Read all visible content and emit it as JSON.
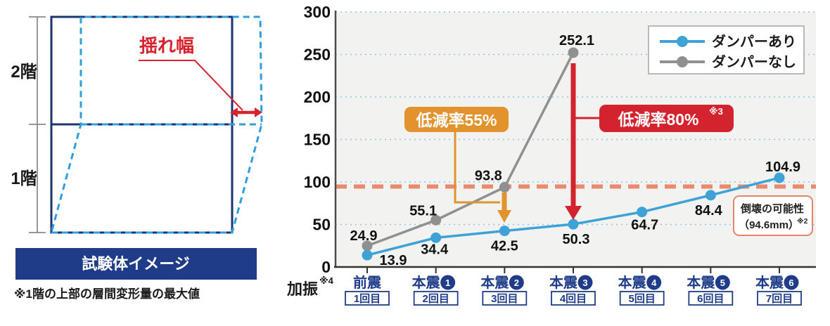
{
  "diagram": {
    "floor2_label": "2階",
    "floor1_label": "1階",
    "sway_label": "揺れ幅",
    "caption": "試験体イメージ",
    "note": "※1階の上部の層間変形量の最大値"
  },
  "chart": {
    "x_prefix": "加振",
    "x_prefix_sup": "※4",
    "annotation_55": {
      "text": "低減率55%",
      "color": "#e2932d"
    },
    "annotation_80": {
      "text": "低減率80%",
      "sup": "※3",
      "color": "#d2232e"
    },
    "threshold_box": {
      "line1": "倒壊の可能性",
      "line2": "（94.6mm）",
      "sup": "※2"
    }
  },
  "chart_data": {
    "type": "line",
    "categories": [
      "前震",
      "本震❶",
      "本震❷",
      "本震❸",
      "本震❹",
      "本震❺",
      "本震❻"
    ],
    "x_axis": [
      {
        "label": "前震",
        "circle_num": "",
        "trial": "1回目"
      },
      {
        "label": "本震",
        "circle_num": "1",
        "trial": "2回目"
      },
      {
        "label": "本震",
        "circle_num": "2",
        "trial": "3回目"
      },
      {
        "label": "本震",
        "circle_num": "3",
        "trial": "4回目"
      },
      {
        "label": "本震",
        "circle_num": "4",
        "trial": "5回目"
      },
      {
        "label": "本震",
        "circle_num": "5",
        "trial": "6回目"
      },
      {
        "label": "本震",
        "circle_num": "6",
        "trial": "7回目"
      }
    ],
    "series": [
      {
        "name": "ダンパーあり",
        "color": "#3fa2d7",
        "values": [
          13.9,
          34.4,
          42.5,
          50.3,
          64.7,
          84.4,
          104.9
        ]
      },
      {
        "name": "ダンパーなし",
        "color": "#909090",
        "values": [
          24.9,
          55.1,
          93.8,
          252.1
        ]
      }
    ],
    "ylim": [
      0,
      300
    ],
    "ytick_step": 50,
    "grid": "horizontal-dotted-blue",
    "legend_position": "top-right",
    "threshold": {
      "value": 94.6,
      "label": "倒壊の可能性（94.6mm）※2",
      "color": "#e98a6d"
    }
  }
}
